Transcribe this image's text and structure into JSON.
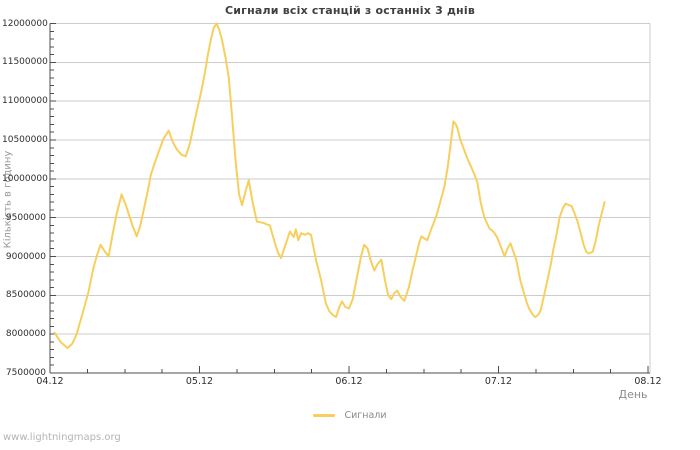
{
  "footer": {
    "watermark": "www.lightningmaps.org"
  },
  "chart_data": {
    "type": "line",
    "title": "Сигнали всіх станцій з останніх 3 днів",
    "xlabel": "День",
    "ylabel": "Кількість в годину",
    "legend_position": "bottom-center",
    "grid": "horizontal",
    "background": "#ffffff",
    "x_ticks": [
      "04.12",
      "05.12",
      "06.12",
      "07.12",
      "08.12"
    ],
    "x_minor_tick_hours": 6,
    "y_ticks": [
      7500000,
      8000000,
      8500000,
      9000000,
      9500000,
      10000000,
      10500000,
      11000000,
      11500000,
      12000000
    ],
    "y_minor_tick_step": 100000,
    "ylim": [
      7500000,
      12000000
    ],
    "xlim_days": [
      0,
      4
    ],
    "series": [
      {
        "name": "Сигнали",
        "color": "#F7CF5E",
        "points": [
          [
            0.03,
            8020000
          ],
          [
            0.07,
            7900000
          ],
          [
            0.117,
            7820000
          ],
          [
            0.15,
            7880000
          ],
          [
            0.178,
            8000000
          ],
          [
            0.22,
            8280000
          ],
          [
            0.258,
            8550000
          ],
          [
            0.29,
            8850000
          ],
          [
            0.312,
            9000000
          ],
          [
            0.338,
            9150000
          ],
          [
            0.365,
            9070000
          ],
          [
            0.392,
            9000000
          ],
          [
            0.42,
            9300000
          ],
          [
            0.446,
            9550000
          ],
          [
            0.479,
            9800000
          ],
          [
            0.51,
            9650000
          ],
          [
            0.526,
            9550000
          ],
          [
            0.555,
            9380000
          ],
          [
            0.58,
            9260000
          ],
          [
            0.605,
            9400000
          ],
          [
            0.627,
            9600000
          ],
          [
            0.655,
            9850000
          ],
          [
            0.674,
            10050000
          ],
          [
            0.7,
            10200000
          ],
          [
            0.727,
            10350000
          ],
          [
            0.76,
            10520000
          ],
          [
            0.794,
            10620000
          ],
          [
            0.82,
            10480000
          ],
          [
            0.848,
            10380000
          ],
          [
            0.88,
            10310000
          ],
          [
            0.908,
            10290000
          ],
          [
            0.935,
            10450000
          ],
          [
            0.962,
            10700000
          ],
          [
            0.985,
            10900000
          ],
          [
            1.009,
            11100000
          ],
          [
            1.035,
            11350000
          ],
          [
            1.056,
            11600000
          ],
          [
            1.08,
            11830000
          ],
          [
            1.096,
            11950000
          ],
          [
            1.116,
            12000000
          ],
          [
            1.13,
            11930000
          ],
          [
            1.149,
            11800000
          ],
          [
            1.175,
            11550000
          ],
          [
            1.196,
            11300000
          ],
          [
            1.22,
            10750000
          ],
          [
            1.243,
            10200000
          ],
          [
            1.265,
            9800000
          ],
          [
            1.284,
            9660000
          ],
          [
            1.31,
            9850000
          ],
          [
            1.33,
            9980000
          ],
          [
            1.355,
            9700000
          ],
          [
            1.384,
            9450000
          ],
          [
            1.41,
            9440000
          ],
          [
            1.431,
            9430000
          ],
          [
            1.455,
            9410000
          ],
          [
            1.471,
            9400000
          ],
          [
            1.5,
            9200000
          ],
          [
            1.525,
            9050000
          ],
          [
            1.545,
            8980000
          ],
          [
            1.575,
            9150000
          ],
          [
            1.605,
            9320000
          ],
          [
            1.63,
            9250000
          ],
          [
            1.645,
            9350000
          ],
          [
            1.66,
            9210000
          ],
          [
            1.68,
            9300000
          ],
          [
            1.706,
            9280000
          ],
          [
            1.725,
            9300000
          ],
          [
            1.746,
            9280000
          ],
          [
            1.78,
            8950000
          ],
          [
            1.813,
            8700000
          ],
          [
            1.845,
            8400000
          ],
          [
            1.867,
            8300000
          ],
          [
            1.89,
            8250000
          ],
          [
            1.914,
            8220000
          ],
          [
            1.935,
            8350000
          ],
          [
            1.954,
            8420000
          ],
          [
            1.975,
            8350000
          ],
          [
            2.0,
            8330000
          ],
          [
            2.025,
            8450000
          ],
          [
            2.055,
            8750000
          ],
          [
            2.08,
            9000000
          ],
          [
            2.102,
            9150000
          ],
          [
            2.125,
            9100000
          ],
          [
            2.145,
            8950000
          ],
          [
            2.169,
            8820000
          ],
          [
            2.19,
            8900000
          ],
          [
            2.216,
            8960000
          ],
          [
            2.24,
            8700000
          ],
          [
            2.262,
            8500000
          ],
          [
            2.283,
            8450000
          ],
          [
            2.303,
            8530000
          ],
          [
            2.323,
            8560000
          ],
          [
            2.345,
            8480000
          ],
          [
            2.37,
            8430000
          ],
          [
            2.4,
            8600000
          ],
          [
            2.425,
            8820000
          ],
          [
            2.45,
            9020000
          ],
          [
            2.47,
            9180000
          ],
          [
            2.484,
            9260000
          ],
          [
            2.505,
            9230000
          ],
          [
            2.524,
            9210000
          ],
          [
            2.55,
            9350000
          ],
          [
            2.584,
            9520000
          ],
          [
            2.61,
            9700000
          ],
          [
            2.638,
            9900000
          ],
          [
            2.66,
            10150000
          ],
          [
            2.68,
            10450000
          ],
          [
            2.698,
            10740000
          ],
          [
            2.715,
            10700000
          ],
          [
            2.725,
            10650000
          ],
          [
            2.745,
            10500000
          ],
          [
            2.765,
            10400000
          ],
          [
            2.79,
            10270000
          ],
          [
            2.818,
            10150000
          ],
          [
            2.84,
            10050000
          ],
          [
            2.859,
            9950000
          ],
          [
            2.88,
            9700000
          ],
          [
            2.906,
            9500000
          ],
          [
            2.94,
            9360000
          ],
          [
            2.96,
            9330000
          ],
          [
            2.973,
            9300000
          ],
          [
            2.99,
            9250000
          ],
          [
            3.007,
            9170000
          ],
          [
            3.025,
            9080000
          ],
          [
            3.04,
            9000000
          ],
          [
            3.06,
            9100000
          ],
          [
            3.08,
            9170000
          ],
          [
            3.1,
            9060000
          ],
          [
            3.12,
            8950000
          ],
          [
            3.145,
            8700000
          ],
          [
            3.167,
            8550000
          ],
          [
            3.19,
            8400000
          ],
          [
            3.207,
            8320000
          ],
          [
            3.23,
            8250000
          ],
          [
            3.247,
            8220000
          ],
          [
            3.265,
            8250000
          ],
          [
            3.281,
            8300000
          ],
          [
            3.305,
            8500000
          ],
          [
            3.328,
            8700000
          ],
          [
            3.35,
            8900000
          ],
          [
            3.368,
            9100000
          ],
          [
            3.39,
            9300000
          ],
          [
            3.408,
            9500000
          ],
          [
            3.43,
            9620000
          ],
          [
            3.448,
            9680000
          ],
          [
            3.47,
            9660000
          ],
          [
            3.489,
            9650000
          ],
          [
            3.51,
            9550000
          ],
          [
            3.529,
            9450000
          ],
          [
            3.55,
            9300000
          ],
          [
            3.569,
            9150000
          ],
          [
            3.587,
            9060000
          ],
          [
            3.603,
            9040000
          ],
          [
            3.618,
            9050000
          ],
          [
            3.63,
            9060000
          ],
          [
            3.65,
            9200000
          ],
          [
            3.67,
            9400000
          ],
          [
            3.69,
            9550000
          ],
          [
            3.71,
            9700000
          ]
        ]
      }
    ]
  }
}
